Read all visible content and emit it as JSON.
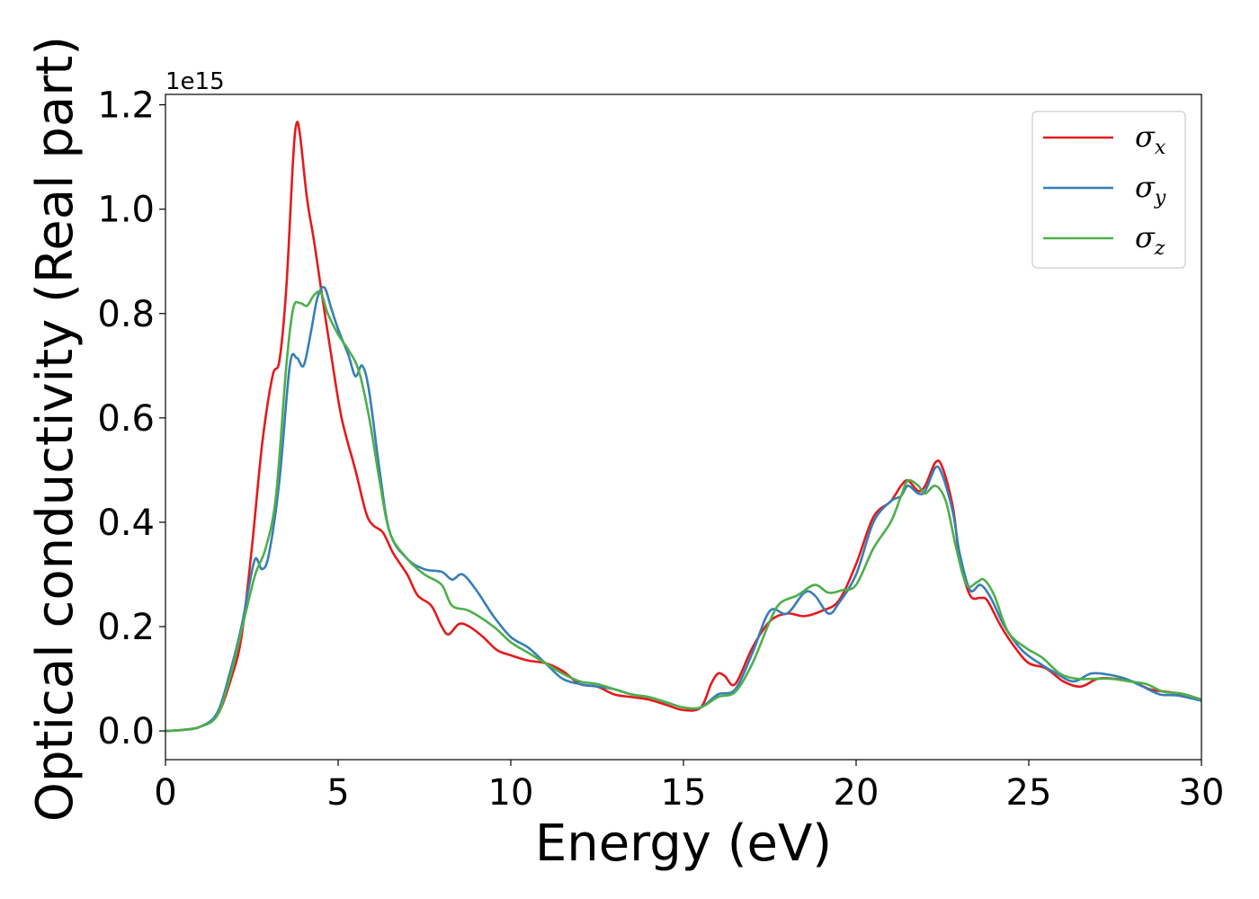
{
  "chart_data": {
    "type": "line",
    "xlabel": "Energy (eV)",
    "ylabel": "Optical conductivity (Real part)",
    "y_offset_label": "1e15",
    "xlim": [
      0,
      30
    ],
    "ylim": [
      -0.055,
      1.22
    ],
    "x_ticks": [
      "0",
      "5",
      "10",
      "15",
      "20",
      "25",
      "30"
    ],
    "y_ticks": [
      "0.0",
      "0.2",
      "0.4",
      "0.6",
      "0.8",
      "1.0",
      "1.2"
    ],
    "grid": false,
    "legend_position": "top-right",
    "series": [
      {
        "name": "σx",
        "symbol": "σ",
        "subscript": "x",
        "color": "#e41a1c",
        "points": [
          [
            0,
            0
          ],
          [
            0.5,
            0.002
          ],
          [
            1.0,
            0.008
          ],
          [
            1.5,
            0.03
          ],
          [
            1.9,
            0.1
          ],
          [
            2.2,
            0.18
          ],
          [
            2.5,
            0.35
          ],
          [
            2.8,
            0.55
          ],
          [
            3.1,
            0.68
          ],
          [
            3.3,
            0.71
          ],
          [
            3.5,
            0.85
          ],
          [
            3.7,
            1.1
          ],
          [
            3.8,
            1.165
          ],
          [
            3.9,
            1.14
          ],
          [
            4.1,
            1.02
          ],
          [
            4.3,
            0.94
          ],
          [
            4.5,
            0.85
          ],
          [
            4.8,
            0.72
          ],
          [
            5.1,
            0.6
          ],
          [
            5.5,
            0.5
          ],
          [
            5.8,
            0.42
          ],
          [
            6.0,
            0.395
          ],
          [
            6.3,
            0.38
          ],
          [
            6.6,
            0.34
          ],
          [
            7.0,
            0.3
          ],
          [
            7.3,
            0.26
          ],
          [
            7.7,
            0.24
          ],
          [
            8.0,
            0.2
          ],
          [
            8.2,
            0.185
          ],
          [
            8.5,
            0.205
          ],
          [
            8.8,
            0.2
          ],
          [
            9.2,
            0.18
          ],
          [
            9.6,
            0.155
          ],
          [
            10.0,
            0.145
          ],
          [
            10.5,
            0.135
          ],
          [
            11.0,
            0.13
          ],
          [
            11.5,
            0.115
          ],
          [
            12.0,
            0.09
          ],
          [
            12.5,
            0.085
          ],
          [
            13.0,
            0.07
          ],
          [
            13.5,
            0.065
          ],
          [
            14.0,
            0.06
          ],
          [
            14.5,
            0.05
          ],
          [
            15.0,
            0.04
          ],
          [
            15.5,
            0.045
          ],
          [
            15.8,
            0.09
          ],
          [
            16.0,
            0.11
          ],
          [
            16.2,
            0.105
          ],
          [
            16.5,
            0.09
          ],
          [
            17.0,
            0.16
          ],
          [
            17.5,
            0.21
          ],
          [
            18.0,
            0.225
          ],
          [
            18.5,
            0.22
          ],
          [
            19.0,
            0.23
          ],
          [
            19.5,
            0.25
          ],
          [
            20.0,
            0.32
          ],
          [
            20.5,
            0.41
          ],
          [
            21.0,
            0.44
          ],
          [
            21.3,
            0.47
          ],
          [
            21.5,
            0.48
          ],
          [
            21.8,
            0.46
          ],
          [
            22.0,
            0.47
          ],
          [
            22.3,
            0.515
          ],
          [
            22.5,
            0.505
          ],
          [
            22.8,
            0.43
          ],
          [
            23.0,
            0.33
          ],
          [
            23.3,
            0.26
          ],
          [
            23.6,
            0.255
          ],
          [
            23.8,
            0.25
          ],
          [
            24.2,
            0.2
          ],
          [
            24.6,
            0.16
          ],
          [
            25.0,
            0.13
          ],
          [
            25.5,
            0.12
          ],
          [
            26.0,
            0.095
          ],
          [
            26.5,
            0.085
          ],
          [
            27.0,
            0.1
          ],
          [
            27.5,
            0.1
          ],
          [
            28.0,
            0.095
          ],
          [
            28.5,
            0.08
          ],
          [
            29.0,
            0.075
          ],
          [
            29.5,
            0.07
          ],
          [
            30.0,
            0.06
          ]
        ]
      },
      {
        "name": "σy",
        "symbol": "σ",
        "subscript": "y",
        "color": "#377eb8",
        "points": [
          [
            0,
            0
          ],
          [
            0.5,
            0.002
          ],
          [
            1.0,
            0.008
          ],
          [
            1.5,
            0.035
          ],
          [
            1.9,
            0.12
          ],
          [
            2.2,
            0.2
          ],
          [
            2.4,
            0.27
          ],
          [
            2.6,
            0.33
          ],
          [
            2.8,
            0.31
          ],
          [
            3.0,
            0.34
          ],
          [
            3.3,
            0.48
          ],
          [
            3.6,
            0.7
          ],
          [
            3.8,
            0.715
          ],
          [
            4.0,
            0.7
          ],
          [
            4.2,
            0.76
          ],
          [
            4.4,
            0.83
          ],
          [
            4.6,
            0.85
          ],
          [
            4.8,
            0.81
          ],
          [
            5.0,
            0.77
          ],
          [
            5.3,
            0.72
          ],
          [
            5.5,
            0.68
          ],
          [
            5.7,
            0.7
          ],
          [
            5.9,
            0.65
          ],
          [
            6.2,
            0.5
          ],
          [
            6.5,
            0.38
          ],
          [
            7.0,
            0.33
          ],
          [
            7.5,
            0.31
          ],
          [
            8.0,
            0.305
          ],
          [
            8.3,
            0.29
          ],
          [
            8.6,
            0.3
          ],
          [
            9.0,
            0.27
          ],
          [
            9.5,
            0.22
          ],
          [
            10.0,
            0.18
          ],
          [
            10.5,
            0.16
          ],
          [
            11.0,
            0.13
          ],
          [
            11.5,
            0.1
          ],
          [
            12.0,
            0.09
          ],
          [
            12.5,
            0.085
          ],
          [
            13.0,
            0.08
          ],
          [
            13.5,
            0.07
          ],
          [
            14.0,
            0.065
          ],
          [
            14.5,
            0.055
          ],
          [
            15.0,
            0.045
          ],
          [
            15.5,
            0.045
          ],
          [
            16.0,
            0.07
          ],
          [
            16.5,
            0.08
          ],
          [
            17.0,
            0.15
          ],
          [
            17.5,
            0.23
          ],
          [
            18.0,
            0.225
          ],
          [
            18.5,
            0.265
          ],
          [
            18.8,
            0.26
          ],
          [
            19.2,
            0.225
          ],
          [
            19.5,
            0.245
          ],
          [
            20.0,
            0.3
          ],
          [
            20.5,
            0.4
          ],
          [
            21.0,
            0.44
          ],
          [
            21.3,
            0.45
          ],
          [
            21.5,
            0.47
          ],
          [
            21.8,
            0.455
          ],
          [
            22.0,
            0.46
          ],
          [
            22.3,
            0.505
          ],
          [
            22.5,
            0.49
          ],
          [
            22.8,
            0.42
          ],
          [
            23.0,
            0.34
          ],
          [
            23.3,
            0.27
          ],
          [
            23.6,
            0.28
          ],
          [
            23.9,
            0.255
          ],
          [
            24.3,
            0.2
          ],
          [
            24.8,
            0.155
          ],
          [
            25.3,
            0.13
          ],
          [
            25.8,
            0.11
          ],
          [
            26.3,
            0.095
          ],
          [
            26.8,
            0.11
          ],
          [
            27.3,
            0.108
          ],
          [
            27.8,
            0.1
          ],
          [
            28.3,
            0.085
          ],
          [
            28.8,
            0.07
          ],
          [
            29.3,
            0.068
          ],
          [
            30.0,
            0.058
          ]
        ]
      },
      {
        "name": "σz",
        "symbol": "σ",
        "subscript": "z",
        "color": "#4daf4a",
        "points": [
          [
            0,
            0
          ],
          [
            0.5,
            0.002
          ],
          [
            1.0,
            0.008
          ],
          [
            1.5,
            0.03
          ],
          [
            1.9,
            0.11
          ],
          [
            2.3,
            0.22
          ],
          [
            2.6,
            0.3
          ],
          [
            2.9,
            0.35
          ],
          [
            3.2,
            0.45
          ],
          [
            3.5,
            0.7
          ],
          [
            3.7,
            0.81
          ],
          [
            3.9,
            0.82
          ],
          [
            4.1,
            0.815
          ],
          [
            4.3,
            0.835
          ],
          [
            4.5,
            0.84
          ],
          [
            4.7,
            0.8
          ],
          [
            5.0,
            0.76
          ],
          [
            5.3,
            0.73
          ],
          [
            5.6,
            0.69
          ],
          [
            5.9,
            0.6
          ],
          [
            6.2,
            0.48
          ],
          [
            6.5,
            0.38
          ],
          [
            7.0,
            0.33
          ],
          [
            7.5,
            0.3
          ],
          [
            8.0,
            0.28
          ],
          [
            8.3,
            0.24
          ],
          [
            8.8,
            0.23
          ],
          [
            9.5,
            0.2
          ],
          [
            10.0,
            0.17
          ],
          [
            10.5,
            0.15
          ],
          [
            11.0,
            0.13
          ],
          [
            11.5,
            0.11
          ],
          [
            12.0,
            0.095
          ],
          [
            12.5,
            0.09
          ],
          [
            13.0,
            0.08
          ],
          [
            13.5,
            0.07
          ],
          [
            14.0,
            0.065
          ],
          [
            14.5,
            0.055
          ],
          [
            15.0,
            0.045
          ],
          [
            15.5,
            0.045
          ],
          [
            16.0,
            0.065
          ],
          [
            16.5,
            0.075
          ],
          [
            17.0,
            0.13
          ],
          [
            17.5,
            0.21
          ],
          [
            17.8,
            0.245
          ],
          [
            18.3,
            0.26
          ],
          [
            18.8,
            0.28
          ],
          [
            19.2,
            0.265
          ],
          [
            19.6,
            0.27
          ],
          [
            20.0,
            0.28
          ],
          [
            20.5,
            0.35
          ],
          [
            21.0,
            0.4
          ],
          [
            21.3,
            0.45
          ],
          [
            21.5,
            0.48
          ],
          [
            21.8,
            0.47
          ],
          [
            22.0,
            0.455
          ],
          [
            22.3,
            0.47
          ],
          [
            22.6,
            0.44
          ],
          [
            22.9,
            0.35
          ],
          [
            23.2,
            0.28
          ],
          [
            23.5,
            0.285
          ],
          [
            23.7,
            0.29
          ],
          [
            24.0,
            0.26
          ],
          [
            24.4,
            0.19
          ],
          [
            24.9,
            0.16
          ],
          [
            25.4,
            0.14
          ],
          [
            25.9,
            0.11
          ],
          [
            26.4,
            0.1
          ],
          [
            26.9,
            0.1
          ],
          [
            27.4,
            0.1
          ],
          [
            27.9,
            0.095
          ],
          [
            28.4,
            0.09
          ],
          [
            28.9,
            0.075
          ],
          [
            29.4,
            0.072
          ],
          [
            30.0,
            0.06
          ]
        ]
      }
    ]
  }
}
